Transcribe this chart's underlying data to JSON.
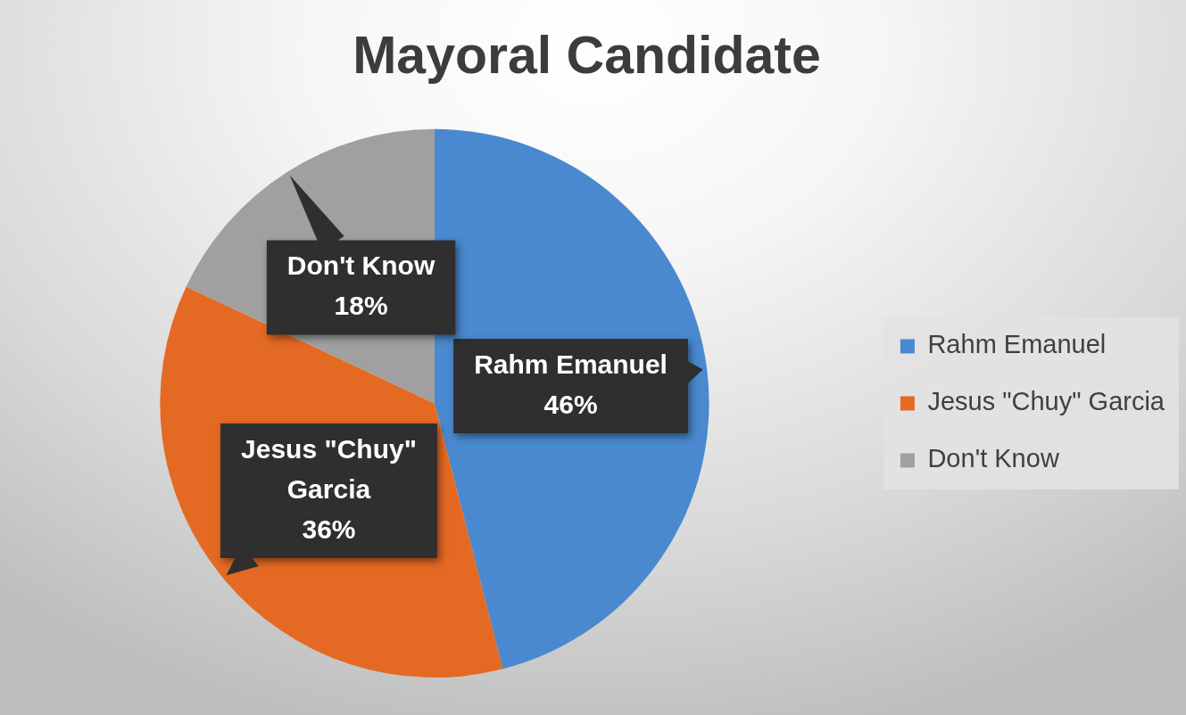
{
  "chart_data": {
    "type": "pie",
    "title": "Mayoral Candidate",
    "categories": [
      "Rahm Emanuel",
      "Jesus \"Chuy\" Garcia",
      "Don't Know"
    ],
    "values": [
      46,
      36,
      18
    ],
    "colors": [
      "#4a89cf",
      "#e46a24",
      "#a0a0a0"
    ],
    "value_labels": [
      "46%",
      "36%",
      "18%"
    ],
    "legend": "right"
  }
}
